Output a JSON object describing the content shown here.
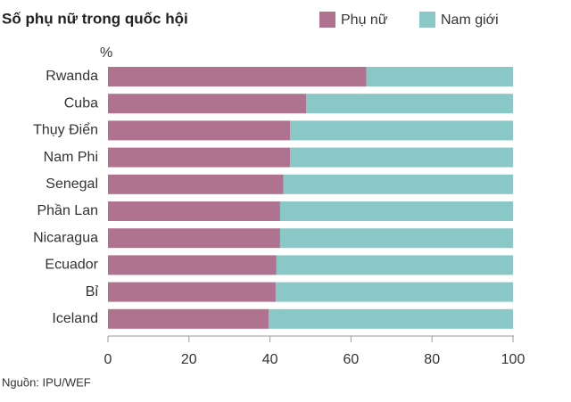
{
  "chart_data": {
    "type": "stacked_bar_horizontal",
    "title": "Số phụ nữ trong quốc hội",
    "unit_label": "%",
    "categories": [
      "Rwanda",
      "Cuba",
      "Thụy Điển",
      "Nam Phi",
      "Senegal",
      "Phần Lan",
      "Nicaragua",
      "Ecuador",
      "Bỉ",
      "Iceland"
    ],
    "series": [
      {
        "name": "Phụ nữ",
        "color": "#b0738f",
        "values": [
          63.8,
          48.9,
          45,
          45,
          43.3,
          42.5,
          42.5,
          41.6,
          41.4,
          39.7
        ]
      },
      {
        "name": "Nam giới",
        "color": "#8ac8c7",
        "values": [
          36.2,
          51.1,
          55,
          55,
          56.7,
          57.5,
          57.5,
          58.4,
          58.6,
          60.3
        ]
      }
    ],
    "xlim": [
      0,
      100
    ],
    "xticks": [
      0,
      20,
      40,
      60,
      80,
      100
    ],
    "source": "Nguồn: IPU/WEF"
  }
}
